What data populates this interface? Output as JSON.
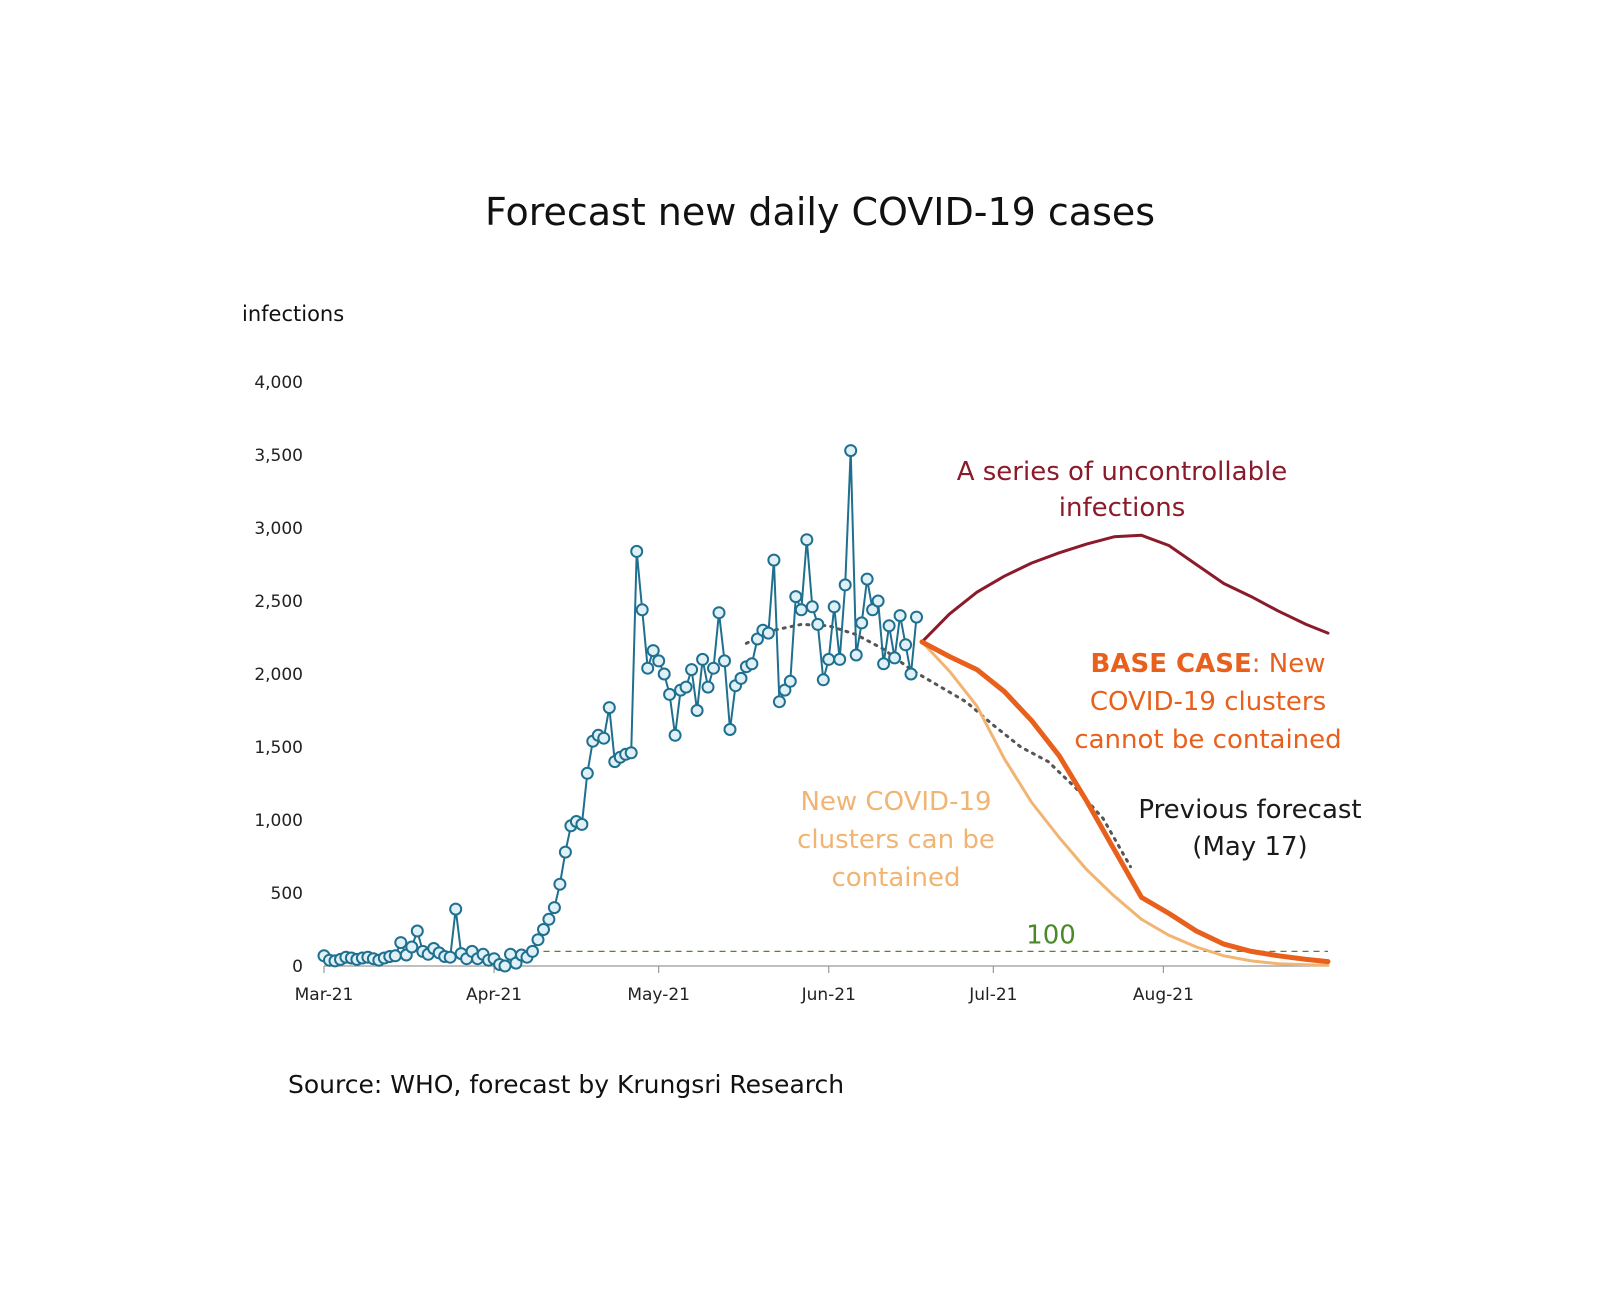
{
  "chart_data": {
    "type": "line",
    "title": "Forecast new daily COVID-19 cases",
    "ylabel": "infections",
    "source": "Source: WHO, forecast by Krungsri Research",
    "ylim": [
      0,
      4000
    ],
    "y_ticks": [
      {
        "value": 0,
        "label": "0"
      },
      {
        "value": 500,
        "label": "500"
      },
      {
        "value": 1000,
        "label": "1,000"
      },
      {
        "value": 1500,
        "label": "1,500"
      },
      {
        "value": 2000,
        "label": "2,000"
      },
      {
        "value": 2500,
        "label": "2,500"
      },
      {
        "value": 3000,
        "label": "3,000"
      },
      {
        "value": 3500,
        "label": "3,500"
      },
      {
        "value": 4000,
        "label": "4,000"
      }
    ],
    "x_start": "2021-03-01",
    "x_end": "2021-08-31",
    "x_ticks": [
      {
        "date": "2021-03-01",
        "label": "Mar-21"
      },
      {
        "date": "2021-04-01",
        "label": "Apr-21"
      },
      {
        "date": "2021-05-01",
        "label": "May-21"
      },
      {
        "date": "2021-06-01",
        "label": "Jun-21"
      },
      {
        "date": "2021-07-01",
        "label": "Jul-21"
      },
      {
        "date": "2021-08-01",
        "label": "Aug-21"
      }
    ],
    "reference_line": {
      "value": 100,
      "label": "100",
      "color": "#4a8a2a"
    },
    "annotations": {
      "uncontrollable": [
        "A series of uncontrollable",
        "infections"
      ],
      "base_case_bold": "BASE CASE",
      "base_case_rest": ": New",
      "base_case_lines": [
        "COVID-19 clusters",
        "cannot be contained"
      ],
      "contained": [
        "New COVID-19",
        "clusters can be",
        "contained"
      ],
      "previous": [
        "Previous forecast",
        "(May 17)"
      ]
    },
    "series": [
      {
        "key": "actual",
        "color": "#1f6f8f",
        "marker_fill": "#dff0f7",
        "points": [
          [
            "2021-03-01",
            70
          ],
          [
            "2021-03-02",
            40
          ],
          [
            "2021-03-03",
            35
          ],
          [
            "2021-03-04",
            45
          ],
          [
            "2021-03-05",
            60
          ],
          [
            "2021-03-06",
            55
          ],
          [
            "2021-03-07",
            45
          ],
          [
            "2021-03-08",
            55
          ],
          [
            "2021-03-09",
            60
          ],
          [
            "2021-03-10",
            50
          ],
          [
            "2021-03-11",
            40
          ],
          [
            "2021-03-12",
            55
          ],
          [
            "2021-03-13",
            65
          ],
          [
            "2021-03-14",
            70
          ],
          [
            "2021-03-15",
            160
          ],
          [
            "2021-03-16",
            75
          ],
          [
            "2021-03-17",
            130
          ],
          [
            "2021-03-18",
            240
          ],
          [
            "2021-03-19",
            100
          ],
          [
            "2021-03-20",
            80
          ],
          [
            "2021-03-21",
            120
          ],
          [
            "2021-03-22",
            90
          ],
          [
            "2021-03-23",
            65
          ],
          [
            "2021-03-24",
            60
          ],
          [
            "2021-03-25",
            390
          ],
          [
            "2021-03-26",
            85
          ],
          [
            "2021-03-27",
            50
          ],
          [
            "2021-03-28",
            100
          ],
          [
            "2021-03-29",
            50
          ],
          [
            "2021-03-30",
            80
          ],
          [
            "2021-03-31",
            40
          ],
          [
            "2021-04-01",
            50
          ],
          [
            "2021-04-02",
            10
          ],
          [
            "2021-04-03",
            0
          ],
          [
            "2021-04-04",
            80
          ],
          [
            "2021-04-05",
            20
          ],
          [
            "2021-04-06",
            75
          ],
          [
            "2021-04-07",
            60
          ],
          [
            "2021-04-08",
            100
          ],
          [
            "2021-04-09",
            180
          ],
          [
            "2021-04-10",
            250
          ],
          [
            "2021-04-11",
            320
          ],
          [
            "2021-04-12",
            400
          ],
          [
            "2021-04-13",
            560
          ],
          [
            "2021-04-14",
            780
          ],
          [
            "2021-04-15",
            960
          ],
          [
            "2021-04-16",
            990
          ],
          [
            "2021-04-17",
            970
          ],
          [
            "2021-04-18",
            1320
          ],
          [
            "2021-04-19",
            1540
          ],
          [
            "2021-04-20",
            1580
          ],
          [
            "2021-04-21",
            1560
          ],
          [
            "2021-04-22",
            1770
          ],
          [
            "2021-04-23",
            1400
          ],
          [
            "2021-04-24",
            1430
          ],
          [
            "2021-04-25",
            1450
          ],
          [
            "2021-04-26",
            1460
          ],
          [
            "2021-04-27",
            2840
          ],
          [
            "2021-04-28",
            2440
          ],
          [
            "2021-04-29",
            2040
          ],
          [
            "2021-04-30",
            2160
          ],
          [
            "2021-05-01",
            2090
          ],
          [
            "2021-05-02",
            2000
          ],
          [
            "2021-05-03",
            1860
          ],
          [
            "2021-05-04",
            1580
          ],
          [
            "2021-05-05",
            1890
          ],
          [
            "2021-05-06",
            1910
          ],
          [
            "2021-05-07",
            2030
          ],
          [
            "2021-05-08",
            1750
          ],
          [
            "2021-05-09",
            2100
          ],
          [
            "2021-05-10",
            1910
          ],
          [
            "2021-05-11",
            2040
          ],
          [
            "2021-05-12",
            2420
          ],
          [
            "2021-05-13",
            2090
          ],
          [
            "2021-05-14",
            1620
          ],
          [
            "2021-05-15",
            1920
          ],
          [
            "2021-05-16",
            1970
          ],
          [
            "2021-05-17",
            2050
          ],
          [
            "2021-05-18",
            2070
          ],
          [
            "2021-05-19",
            2240
          ],
          [
            "2021-05-20",
            2300
          ],
          [
            "2021-05-21",
            2280
          ],
          [
            "2021-05-22",
            2780
          ],
          [
            "2021-05-23",
            1810
          ],
          [
            "2021-05-24",
            1890
          ],
          [
            "2021-05-25",
            1950
          ],
          [
            "2021-05-26",
            2530
          ],
          [
            "2021-05-27",
            2440
          ],
          [
            "2021-05-28",
            2920
          ],
          [
            "2021-05-29",
            2460
          ],
          [
            "2021-05-30",
            2340
          ],
          [
            "2021-05-31",
            1960
          ],
          [
            "2021-06-01",
            2100
          ],
          [
            "2021-06-02",
            2460
          ],
          [
            "2021-06-03",
            2100
          ],
          [
            "2021-06-04",
            2610
          ],
          [
            "2021-06-05",
            3530
          ],
          [
            "2021-06-06",
            2130
          ],
          [
            "2021-06-07",
            2350
          ],
          [
            "2021-06-08",
            2650
          ],
          [
            "2021-06-09",
            2440
          ],
          [
            "2021-06-10",
            2500
          ],
          [
            "2021-06-11",
            2070
          ],
          [
            "2021-06-12",
            2330
          ],
          [
            "2021-06-13",
            2110
          ],
          [
            "2021-06-14",
            2400
          ],
          [
            "2021-06-15",
            2200
          ],
          [
            "2021-06-16",
            2000
          ],
          [
            "2021-06-17",
            2390
          ]
        ]
      },
      {
        "key": "previous_forecast",
        "color": "#555555",
        "points": [
          [
            "2021-05-17",
            2210
          ],
          [
            "2021-05-22",
            2300
          ],
          [
            "2021-05-27",
            2340
          ],
          [
            "2021-06-01",
            2330
          ],
          [
            "2021-06-06",
            2270
          ],
          [
            "2021-06-11",
            2170
          ],
          [
            "2021-06-16",
            2030
          ],
          [
            "2021-06-21",
            1920
          ],
          [
            "2021-06-26",
            1810
          ],
          [
            "2021-07-01",
            1650
          ],
          [
            "2021-07-06",
            1500
          ],
          [
            "2021-07-11",
            1400
          ],
          [
            "2021-07-16",
            1220
          ],
          [
            "2021-07-21",
            1010
          ],
          [
            "2021-07-26",
            680
          ]
        ]
      },
      {
        "key": "uncontrollable",
        "color": "#8b1a2b",
        "points": [
          [
            "2021-06-18",
            2220
          ],
          [
            "2021-06-23",
            2410
          ],
          [
            "2021-06-28",
            2560
          ],
          [
            "2021-07-03",
            2670
          ],
          [
            "2021-07-08",
            2760
          ],
          [
            "2021-07-13",
            2830
          ],
          [
            "2021-07-18",
            2890
          ],
          [
            "2021-07-23",
            2940
          ],
          [
            "2021-07-28",
            2950
          ],
          [
            "2021-08-02",
            2880
          ],
          [
            "2021-08-07",
            2750
          ],
          [
            "2021-08-12",
            2620
          ],
          [
            "2021-08-17",
            2530
          ],
          [
            "2021-08-22",
            2430
          ],
          [
            "2021-08-27",
            2340
          ],
          [
            "2021-08-31",
            2280
          ]
        ]
      },
      {
        "key": "base_case",
        "color": "#e8601c",
        "points": [
          [
            "2021-06-18",
            2220
          ],
          [
            "2021-06-23",
            2120
          ],
          [
            "2021-06-28",
            2030
          ],
          [
            "2021-07-03",
            1880
          ],
          [
            "2021-07-08",
            1680
          ],
          [
            "2021-07-13",
            1440
          ],
          [
            "2021-07-18",
            1130
          ],
          [
            "2021-07-23",
            800
          ],
          [
            "2021-07-28",
            470
          ],
          [
            "2021-08-02",
            360
          ],
          [
            "2021-08-07",
            240
          ],
          [
            "2021-08-12",
            150
          ],
          [
            "2021-08-17",
            100
          ],
          [
            "2021-08-22",
            70
          ],
          [
            "2021-08-27",
            45
          ],
          [
            "2021-08-31",
            30
          ]
        ]
      },
      {
        "key": "contained",
        "color": "#f2b472",
        "points": [
          [
            "2021-06-18",
            2220
          ],
          [
            "2021-06-23",
            2020
          ],
          [
            "2021-06-28",
            1780
          ],
          [
            "2021-07-03",
            1420
          ],
          [
            "2021-07-08",
            1120
          ],
          [
            "2021-07-13",
            880
          ],
          [
            "2021-07-18",
            660
          ],
          [
            "2021-07-23",
            480
          ],
          [
            "2021-07-28",
            320
          ],
          [
            "2021-08-02",
            210
          ],
          [
            "2021-08-07",
            130
          ],
          [
            "2021-08-12",
            70
          ],
          [
            "2021-08-17",
            35
          ],
          [
            "2021-08-22",
            15
          ],
          [
            "2021-08-27",
            8
          ],
          [
            "2021-08-31",
            5
          ]
        ]
      }
    ]
  }
}
